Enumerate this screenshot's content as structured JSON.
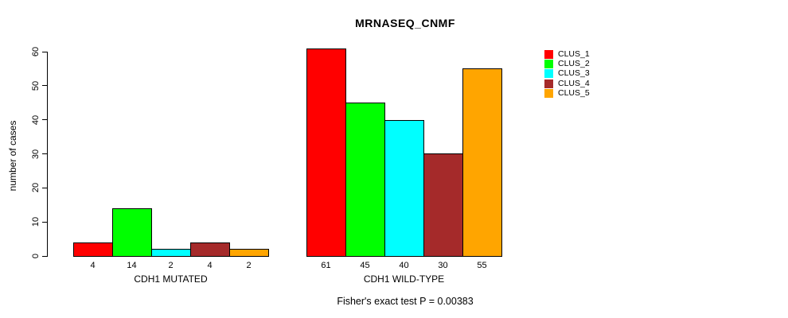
{
  "chart_data": {
    "type": "bar",
    "title": "MRNASEQ_CNMF",
    "ylabel": "number of cases",
    "footer": "Fisher's exact test P = 0.00383",
    "ylim": [
      0,
      60
    ],
    "yticks": [
      0,
      10,
      20,
      30,
      40,
      50,
      60
    ],
    "grid": false,
    "legend_position": "right-inside",
    "categories": [
      "CDH1 MUTATED",
      "CDH1 WILD-TYPE"
    ],
    "series": [
      {
        "name": "CLUS_1",
        "color": "#ff0000",
        "values": [
          4,
          61
        ]
      },
      {
        "name": "CLUS_2",
        "color": "#00ff00",
        "values": [
          14,
          45
        ]
      },
      {
        "name": "CLUS_3",
        "color": "#00ffff",
        "values": [
          2,
          40
        ]
      },
      {
        "name": "CLUS_4",
        "color": "#a52a2a",
        "values": [
          4,
          30
        ]
      },
      {
        "name": "CLUS_5",
        "color": "#ffa500",
        "values": [
          2,
          55
        ]
      }
    ],
    "bar_value_labels_shown": true,
    "groups": [
      {
        "label": "CDH1 MUTATED",
        "values": [
          4,
          14,
          2,
          4,
          2
        ]
      },
      {
        "label": "CDH1 WILD-TYPE",
        "values": [
          61,
          45,
          40,
          30,
          55
        ]
      }
    ],
    "legend": [
      "CLUS_1",
      "CLUS_2",
      "CLUS_3",
      "CLUS_4",
      "CLUS_5"
    ],
    "colors": {
      "bar_border": "#000000",
      "axis": "#000000",
      "text": "#000000",
      "background": "#ffffff"
    }
  }
}
